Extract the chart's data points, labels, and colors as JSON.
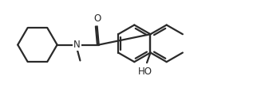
{
  "bg_color": "#ffffff",
  "line_color": "#2a2a2a",
  "line_width": 1.6,
  "fig_width": 3.27,
  "fig_height": 1.2,
  "dpi": 100,
  "xlim": [
    0,
    9.5
  ],
  "ylim": [
    0,
    3.5
  ]
}
